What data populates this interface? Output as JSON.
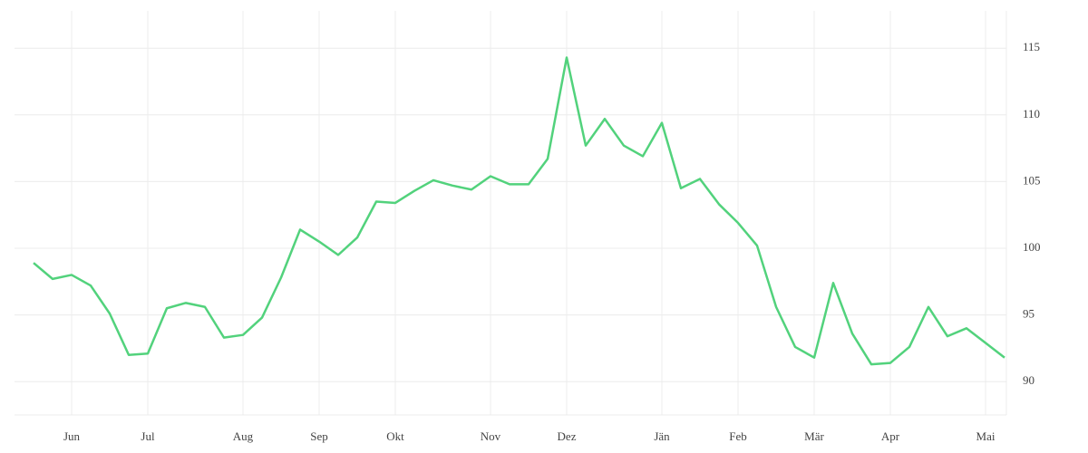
{
  "chart_data": {
    "type": "line",
    "categories": [
      null,
      null,
      "Jun",
      null,
      null,
      null,
      "Jul",
      null,
      null,
      null,
      null,
      "Aug",
      null,
      null,
      null,
      "Sep",
      null,
      null,
      null,
      "Okt",
      null,
      null,
      null,
      null,
      "Nov",
      null,
      null,
      null,
      "Dez",
      null,
      null,
      null,
      null,
      "Jän",
      null,
      null,
      null,
      "Feb",
      null,
      null,
      null,
      "Mär",
      null,
      null,
      null,
      "Apr",
      null,
      null,
      null,
      null,
      "Mai",
      null
    ],
    "series": [
      {
        "color": "#52d27c",
        "values": [
          98.9,
          97.7,
          98.0,
          97.2,
          95.1,
          92.0,
          92.1,
          95.5,
          95.9,
          95.6,
          93.3,
          93.5,
          94.8,
          97.8,
          101.4,
          100.5,
          99.5,
          100.8,
          103.5,
          103.4,
          104.3,
          105.1,
          104.7,
          104.4,
          105.4,
          104.8,
          104.8,
          106.7,
          114.3,
          107.7,
          109.7,
          107.7,
          106.9,
          109.4,
          104.5,
          105.2,
          103.3,
          101.9,
          100.2,
          95.6,
          92.6,
          91.8,
          97.4,
          93.6,
          91.3,
          91.4,
          92.6,
          95.6,
          93.4,
          94.0,
          92.9,
          91.8
        ]
      }
    ],
    "ylim": [
      87.5,
      117.8
    ],
    "yticks": [
      90,
      95,
      100,
      105,
      110,
      115
    ],
    "grid": true
  }
}
